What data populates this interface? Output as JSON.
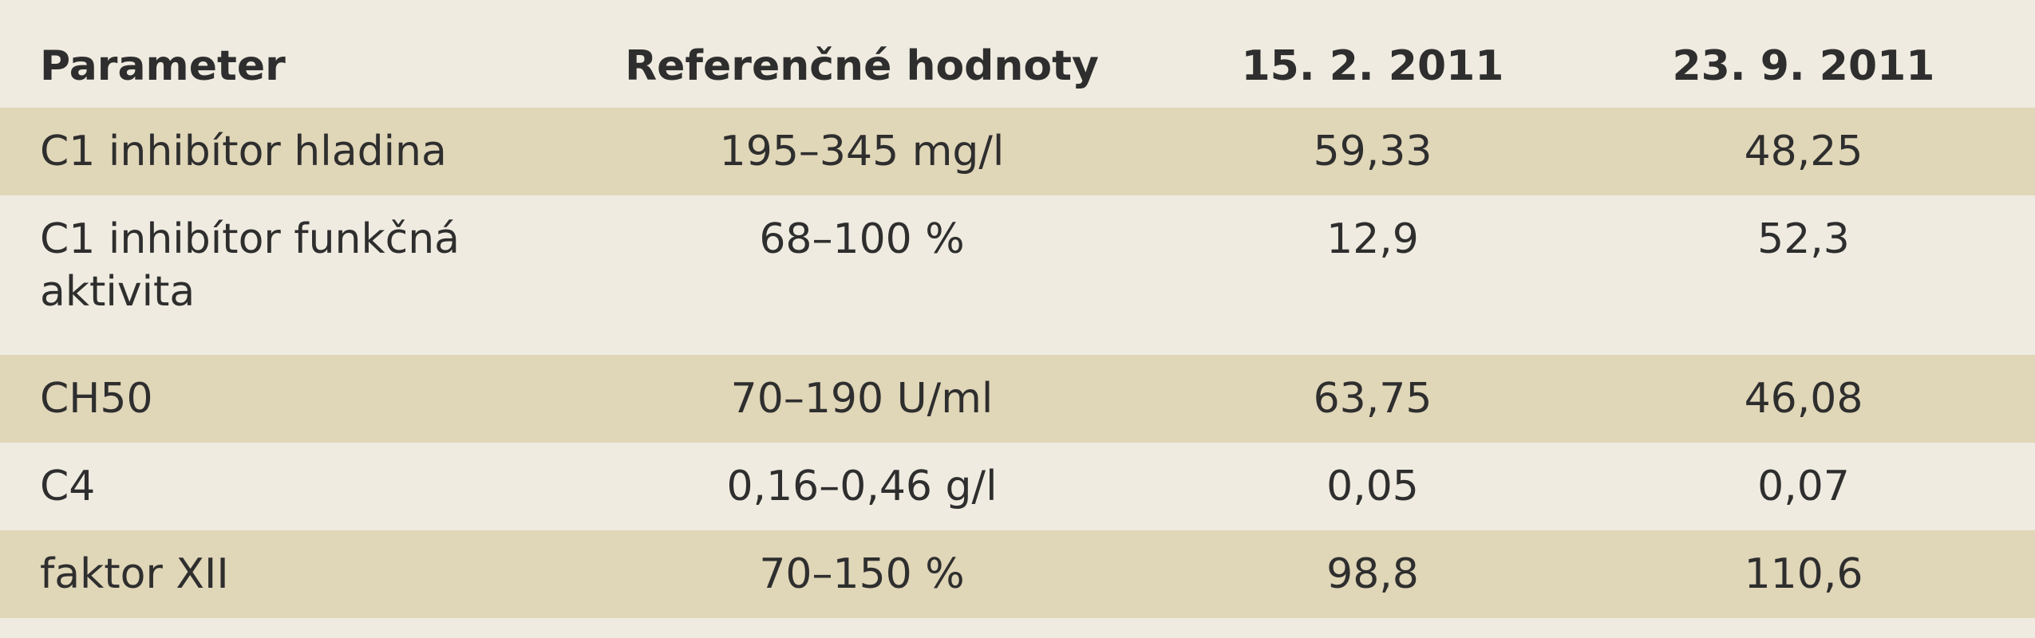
{
  "table": {
    "header": [
      "Parameter",
      "Referenčné hodnoty",
      "15. 2. 2011",
      "23. 9. 2011"
    ],
    "rows": [
      [
        "C1 inhibítor hladina",
        "195–345 mg/l",
        "59,33",
        "48,25"
      ],
      [
        "C1 inhibítor funkčná aktivita",
        "68–100 %",
        "12,9",
        "52,3"
      ],
      [
        "CH50",
        "70–190 U/ml",
        "63,75",
        "46,08"
      ],
      [
        "C4",
        "0,16–0,46 g/l",
        "0,05",
        "0,07"
      ],
      [
        "faktor XII",
        "70–150 %",
        "98,8",
        "110,6"
      ]
    ]
  }
}
